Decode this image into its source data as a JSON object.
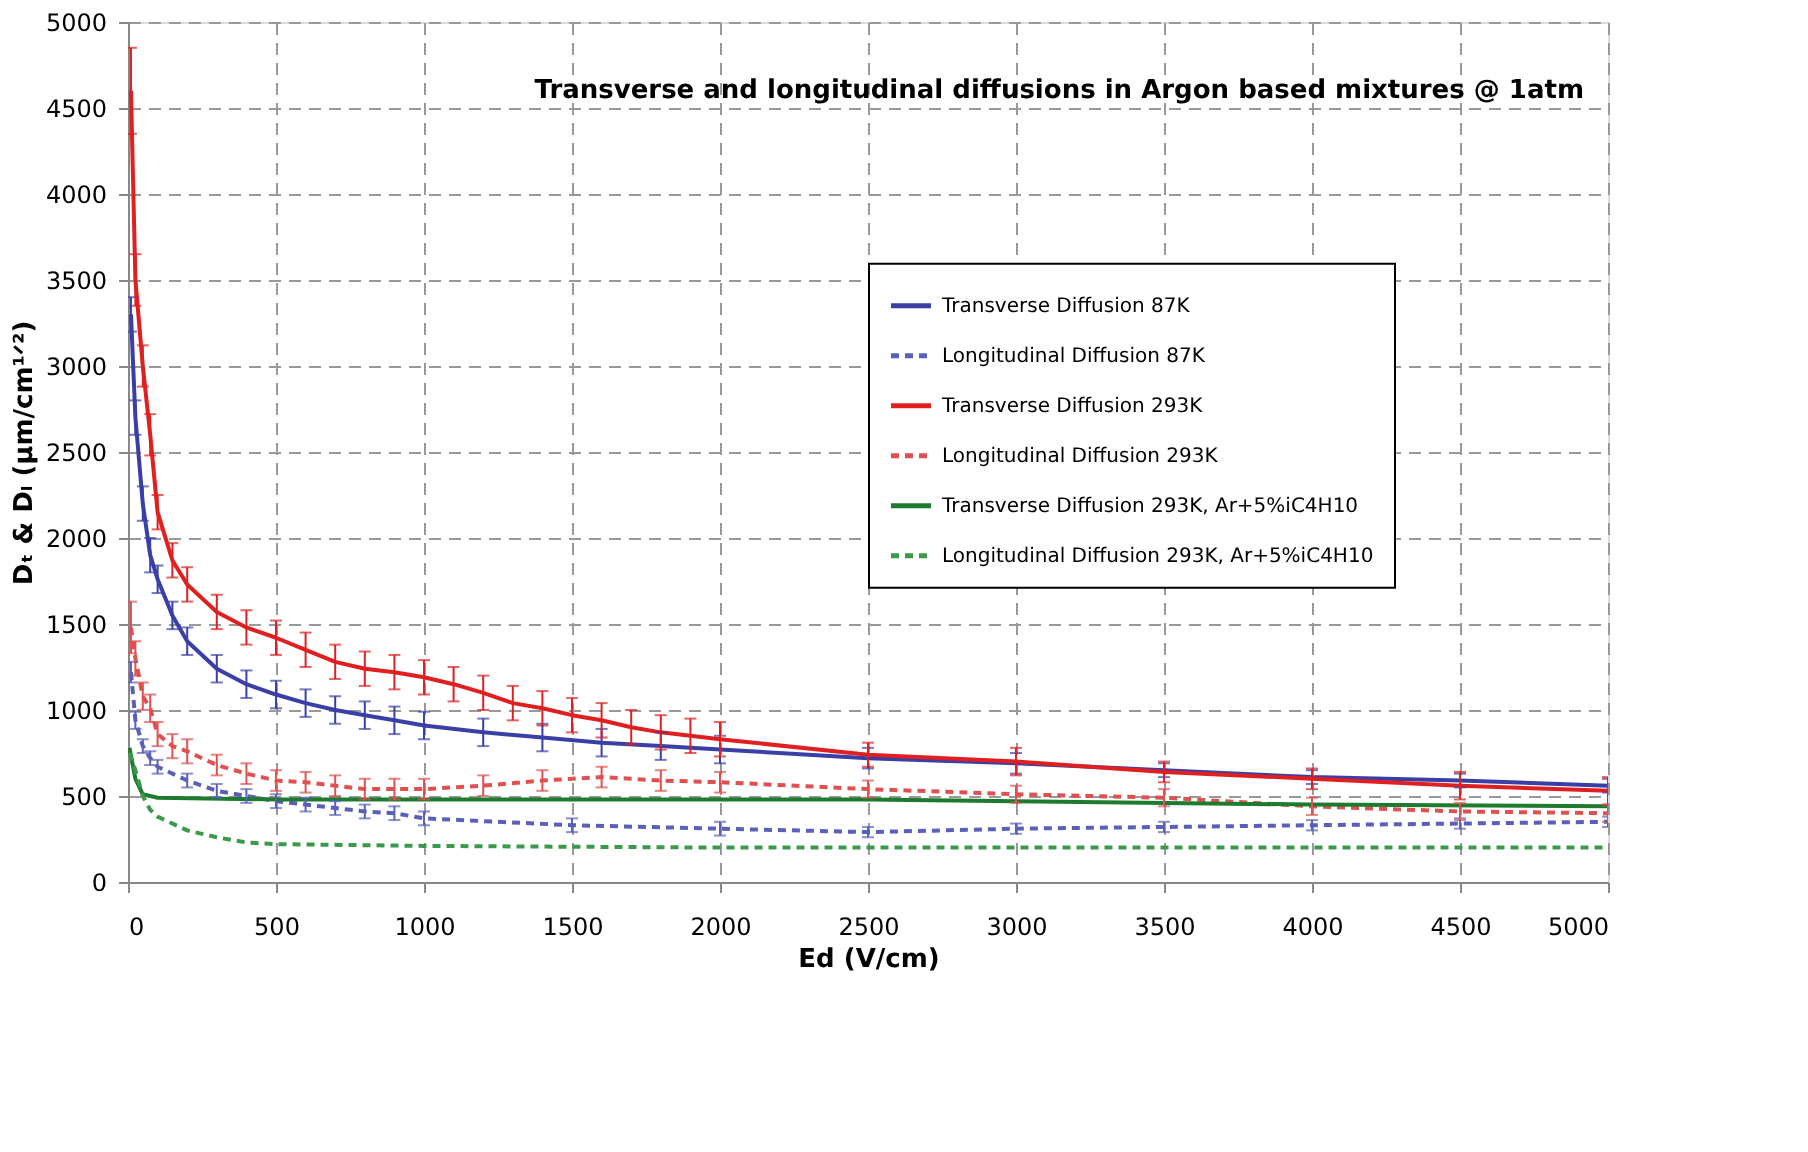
{
  "chart_data": {
    "type": "line",
    "title": "Transverse and longitudinal diffusions in Argon based mixtures @ 1atm",
    "xlabel": "Ed (V/cm)",
    "ylabel": "Dₜ & Dₗ  (µm/cm¹ᐟ²)",
    "xlim": [
      0,
      5000
    ],
    "ylim": [
      0,
      5000
    ],
    "xticks": [
      0,
      500,
      1000,
      1500,
      2000,
      2500,
      3000,
      3500,
      4000,
      4500,
      5000
    ],
    "yticks": [
      0,
      500,
      1000,
      1500,
      2000,
      2500,
      3000,
      3500,
      4000,
      4500,
      5000
    ],
    "grid": true,
    "legend": "right",
    "marker": "none",
    "series": [
      {
        "name": "Transverse Diffusion 87K",
        "color": "#3a3fa8",
        "line_style": "solid",
        "x": [
          10,
          25,
          50,
          75,
          100,
          150,
          200,
          300,
          400,
          500,
          600,
          700,
          800,
          900,
          1000,
          1200,
          1400,
          1600,
          1800,
          2000,
          2500,
          3000,
          3500,
          4000,
          4500,
          5000
        ],
        "values": [
          3300,
          2700,
          2200,
          1900,
          1760,
          1550,
          1400,
          1240,
          1150,
          1090,
          1040,
          1000,
          970,
          940,
          910,
          870,
          840,
          810,
          790,
          770,
          720,
          690,
          650,
          610,
          590,
          560
        ],
        "errors": [
          100,
          100,
          100,
          100,
          80,
          80,
          80,
          80,
          80,
          80,
          80,
          80,
          80,
          80,
          80,
          80,
          80,
          80,
          80,
          80,
          60,
          60,
          40,
          40,
          40,
          40
        ]
      },
      {
        "name": "Longitudinal Diffusion 87K",
        "color": "#5a5fb8",
        "line_style": "dashed",
        "x": [
          10,
          25,
          50,
          75,
          100,
          200,
          300,
          400,
          500,
          600,
          700,
          800,
          900,
          1000,
          1500,
          2000,
          2500,
          3000,
          3500,
          4000,
          4500,
          5000
        ],
        "values": [
          1220,
          940,
          790,
          720,
          670,
          590,
          530,
          500,
          470,
          450,
          430,
          410,
          400,
          370,
          330,
          310,
          290,
          310,
          320,
          330,
          340,
          350
        ],
        "errors": [
          60,
          50,
          40,
          40,
          40,
          40,
          40,
          40,
          40,
          40,
          40,
          40,
          40,
          40,
          40,
          40,
          30,
          30,
          30,
          30,
          30,
          30
        ]
      },
      {
        "name": "Transverse Diffusion 293K",
        "color": "#e02020",
        "line_style": "solid",
        "x": [
          10,
          25,
          50,
          75,
          100,
          150,
          200,
          300,
          400,
          500,
          600,
          700,
          800,
          900,
          1000,
          1100,
          1200,
          1300,
          1400,
          1500,
          1600,
          1700,
          1800,
          1900,
          2000,
          2500,
          3000,
          3500,
          4000,
          4500,
          5000
        ],
        "values": [
          4600,
          3500,
          3000,
          2600,
          2150,
          1870,
          1730,
          1570,
          1480,
          1420,
          1350,
          1280,
          1240,
          1220,
          1190,
          1150,
          1100,
          1040,
          1010,
          970,
          940,
          900,
          870,
          850,
          830,
          740,
          700,
          640,
          600,
          560,
          530
        ],
        "errors": [
          250,
          150,
          120,
          120,
          100,
          100,
          100,
          100,
          100,
          100,
          100,
          100,
          100,
          100,
          100,
          100,
          100,
          100,
          100,
          100,
          100,
          100,
          100,
          100,
          100,
          70,
          80,
          60,
          60,
          80,
          80
        ]
      },
      {
        "name": "Longitudinal Diffusion 293K",
        "color": "#e05050",
        "line_style": "dashed",
        "x": [
          10,
          25,
          50,
          75,
          100,
          150,
          200,
          300,
          400,
          500,
          600,
          700,
          800,
          900,
          1000,
          1200,
          1400,
          1600,
          1800,
          2000,
          2500,
          3000,
          3500,
          4000,
          4500,
          5000
        ],
        "values": [
          1480,
          1300,
          1080,
          1010,
          860,
          790,
          760,
          680,
          630,
          590,
          580,
          560,
          540,
          540,
          540,
          560,
          590,
          610,
          590,
          580,
          540,
          510,
          490,
          440,
          410,
          400
        ],
        "errors": [
          150,
          100,
          80,
          80,
          70,
          70,
          70,
          60,
          60,
          60,
          60,
          60,
          60,
          60,
          60,
          60,
          60,
          60,
          60,
          60,
          50,
          50,
          50,
          50,
          50,
          50
        ]
      },
      {
        "name": "Transverse Diffusion 293K, Ar+5%iC4H10",
        "color": "#1e7a2e",
        "line_style": "solid",
        "x": [
          5,
          25,
          50,
          100,
          500,
          1000,
          2000,
          2500,
          3000,
          4000,
          5000
        ],
        "values": [
          780,
          600,
          510,
          490,
          480,
          480,
          480,
          480,
          470,
          450,
          440
        ]
      },
      {
        "name": "Longitudinal Diffusion 293K, Ar+5%iC4H10",
        "color": "#3a9a4a",
        "line_style": "dashed",
        "x": [
          5,
          25,
          50,
          75,
          100,
          200,
          300,
          400,
          500,
          1000,
          2000,
          5000
        ],
        "values": [
          750,
          650,
          500,
          420,
          380,
          300,
          260,
          230,
          220,
          210,
          200,
          200
        ]
      }
    ]
  }
}
